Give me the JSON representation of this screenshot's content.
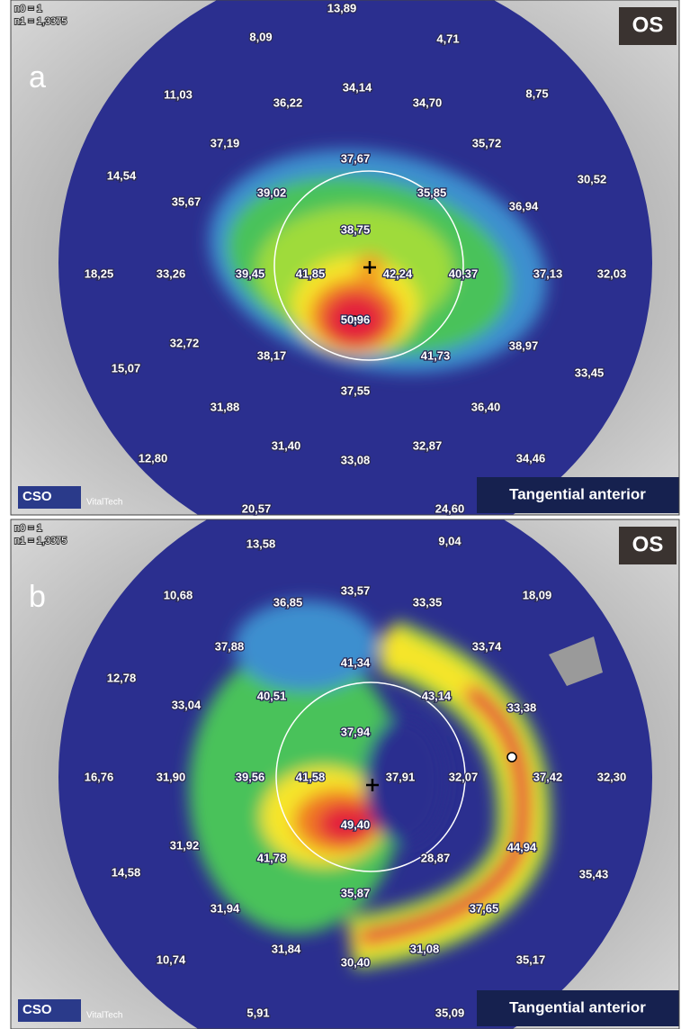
{
  "panels": [
    {
      "label": "a",
      "eye": "OS",
      "n0": "n0 = 1",
      "n1": "n1 = 1,3375",
      "mode": "Tangential anterior",
      "logo": "CSO",
      "brand": "VitalTech",
      "readings": [
        "13,89",
        "8,09",
        "4,71",
        "11,03",
        "36,22",
        "34,14",
        "34,70",
        "8,75",
        "37,19",
        "35,72",
        "14,54",
        "37,67",
        "30,52",
        "35,67",
        "39,02",
        "35,85",
        "36,94",
        "38,75",
        "18,25",
        "33,26",
        "39,45",
        "41,85",
        "42,24",
        "40,37",
        "37,13",
        "32,03",
        "50,96",
        "32,72",
        "38,17",
        "41,73",
        "38,97",
        "15,07",
        "37,55",
        "33,45",
        "31,88",
        "36,40",
        "31,40",
        "32,87",
        "12,80",
        "33,08",
        "34,46",
        "20,57",
        "24,60"
      ]
    },
    {
      "label": "b",
      "eye": "OS",
      "n0": "n0 = 1",
      "n1": "n1 = 1,3375",
      "mode": "Tangential anterior",
      "logo": "CSO",
      "brand": "VitalTech",
      "readings": [
        "13,58",
        "9,04",
        "10,68",
        "36,85",
        "33,57",
        "33,35",
        "18,09",
        "37,88",
        "33,74",
        "12,78",
        "41,34",
        "33,04",
        "40,51",
        "43,14",
        "33,38",
        "37,94",
        "16,76",
        "31,90",
        "39,56",
        "41,58",
        "37,91",
        "32,07",
        "37,42",
        "32,30",
        "49,40",
        "31,92",
        "41,78",
        "28,87",
        "44,94",
        "14,58",
        "35,43",
        "35,87",
        "31,94",
        "37,65",
        "31,84",
        "31,08",
        "10,74",
        "30,40",
        "35,17",
        "5,91",
        "35,09"
      ]
    }
  ]
}
